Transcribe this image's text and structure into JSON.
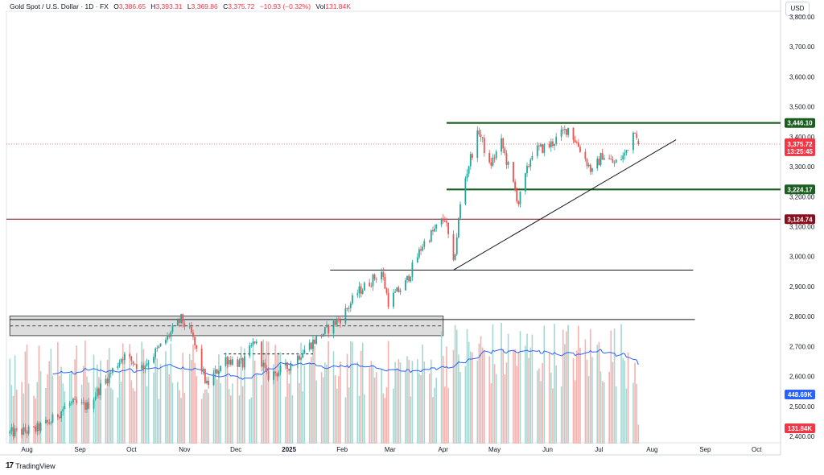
{
  "header": {
    "symbol": "Gold Spot / U.S. Dollar · 1D · FX",
    "open_label": "O",
    "open": "3,386.65",
    "high_label": "H",
    "high": "3,393.31",
    "low_label": "L",
    "low": "3,369.86",
    "close_label": "C",
    "close": "3,375.72",
    "change": "−10.93 (−0.32%)",
    "vol_label": "Vol",
    "vol": "131.84K"
  },
  "currency": "USD",
  "brand": {
    "logo_text": "17",
    "name": "TradingView"
  },
  "colors": {
    "up": "#26a69a",
    "down": "#ef5350",
    "vol_up": "#a7d7d2",
    "vol_down": "#f5b2af",
    "level_green": "#1b5e20",
    "level_red": "#880e1c",
    "current_price": "#f23645",
    "ma": "#2962ff"
  },
  "chart_data": {
    "type": "candlestick",
    "title": "Gold Spot / U.S. Dollar",
    "interval": "1D",
    "y_axis": {
      "position": "right",
      "ticks": [
        "2,400.00",
        "2,500.00",
        "2,600.00",
        "2,700.00",
        "2,800.00",
        "2,900.00",
        "3,000.00",
        "3,100.00",
        "3,200.00",
        "3,300.00",
        "3,400.00",
        "3,500.00",
        "3,600.00",
        "3,700.00",
        "3,800.00"
      ],
      "range": [
        2400,
        3800
      ]
    },
    "x_axis": {
      "ticks": [
        "Aug",
        "Sep",
        "Oct",
        "Nov",
        "Dec",
        "2025",
        "Feb",
        "Mar",
        "Apr",
        "May",
        "Jun",
        "Jul",
        "Aug",
        "Sep",
        "Oct"
      ],
      "range": [
        "2024-07-20",
        "2025-10-15"
      ]
    },
    "anchors": [
      [
        "2024-07-20",
        2410
      ],
      [
        "2024-08-05",
        2420
      ],
      [
        "2024-08-15",
        2450
      ],
      [
        "2024-08-25",
        2510
      ],
      [
        "2024-09-05",
        2500
      ],
      [
        "2024-09-15",
        2580
      ],
      [
        "2024-09-26",
        2670
      ],
      [
        "2024-10-07",
        2630
      ],
      [
        "2024-10-18",
        2700
      ],
      [
        "2024-10-30",
        2790
      ],
      [
        "2024-11-05",
        2740
      ],
      [
        "2024-11-14",
        2570
      ],
      [
        "2024-11-25",
        2660
      ],
      [
        "2024-12-05",
        2640
      ],
      [
        "2024-12-12",
        2720
      ],
      [
        "2024-12-19",
        2600
      ],
      [
        "2024-12-31",
        2630
      ],
      [
        "2025-01-10",
        2690
      ],
      [
        "2025-01-22",
        2750
      ],
      [
        "2025-02-01",
        2800
      ],
      [
        "2025-02-10",
        2880
      ],
      [
        "2025-02-24",
        2950
      ],
      [
        "2025-02-28",
        2850
      ],
      [
        "2025-03-10",
        2910
      ],
      [
        "2025-03-20",
        3040
      ],
      [
        "2025-04-02",
        3130
      ],
      [
        "2025-04-07",
        2970
      ],
      [
        "2025-04-12",
        3220
      ],
      [
        "2025-04-17",
        3330
      ],
      [
        "2025-04-22",
        3420
      ],
      [
        "2025-04-28",
        3300
      ],
      [
        "2025-05-05",
        3380
      ],
      [
        "2025-05-15",
        3180
      ],
      [
        "2025-05-23",
        3350
      ],
      [
        "2025-06-02",
        3370
      ],
      [
        "2025-06-13",
        3430
      ],
      [
        "2025-06-20",
        3360
      ],
      [
        "2025-06-27",
        3280
      ],
      [
        "2025-07-03",
        3340
      ],
      [
        "2025-07-10",
        3310
      ],
      [
        "2025-07-16",
        3340
      ],
      [
        "2025-07-22",
        3430
      ],
      [
        "2025-07-25",
        3375.72
      ]
    ],
    "price_tags": [
      {
        "label": "3,446.10",
        "value": 3446.1,
        "kind": "green"
      },
      {
        "label": "3,224.17",
        "value": 3224.17,
        "kind": "green"
      },
      {
        "label": "3,124.74",
        "value": 3124.74,
        "kind": "red"
      }
    ],
    "current": {
      "price": "3,375.72",
      "value": 3375.72,
      "countdown": "13:25:45"
    },
    "volume_tag": "131.84K",
    "ma_tag": "448.69K",
    "horizontal_lines": [
      {
        "value": 3446.1,
        "from": "2025-04-03",
        "to": "2025-10-15",
        "kind": "green"
      },
      {
        "value": 3224.17,
        "from": "2025-04-03",
        "to": "2025-10-15",
        "kind": "green"
      },
      {
        "value": 3124.74,
        "from": "2024-07-20",
        "to": "2025-10-15",
        "kind": "red"
      },
      {
        "value": 2955,
        "from": "2025-01-25",
        "to": "2025-08-25",
        "kind": "black"
      },
      {
        "value": 2790,
        "from": "2024-07-22",
        "to": "2025-08-26",
        "kind": "black"
      },
      {
        "value": 2675,
        "from": "2024-11-24",
        "to": "2025-01-15",
        "kind": "dashed"
      }
    ],
    "trendline": {
      "from": [
        "2025-04-07",
        2955
      ],
      "to": [
        "2025-08-15",
        3390
      ]
    },
    "volume_box": {
      "from": "2024-07-22",
      "to": "2025-04-01",
      "top_vol": 880,
      "bottom_vol": 745
    }
  }
}
